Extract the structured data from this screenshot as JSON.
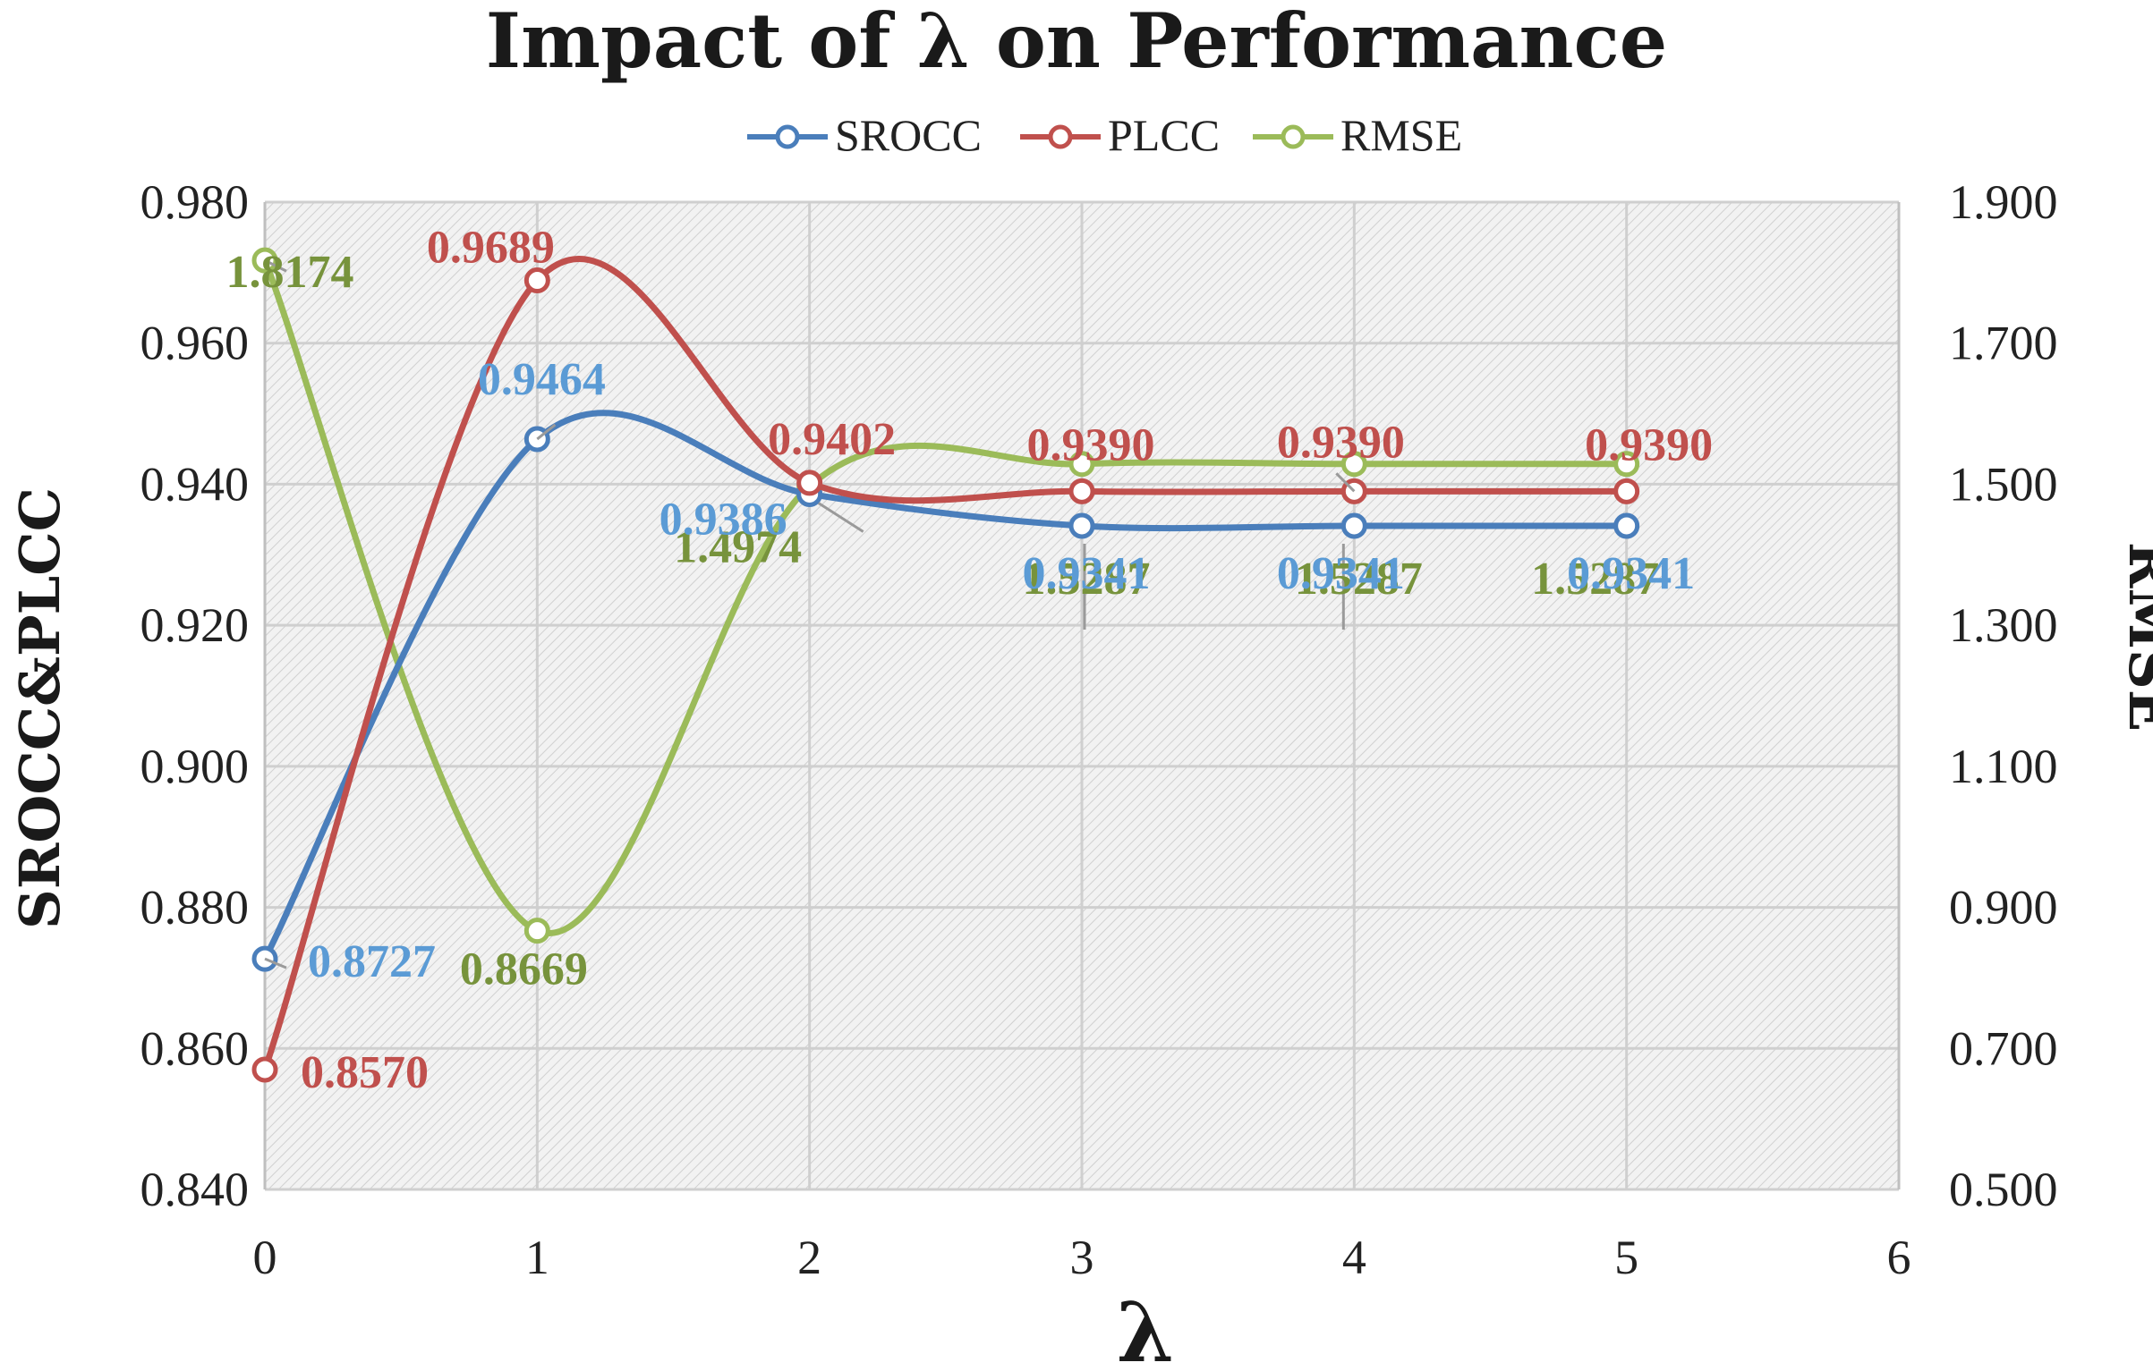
{
  "chart_data": {
    "type": "line",
    "title": "Impact of λ on Performance",
    "xlabel": "λ",
    "ylabel": "SROCC&PLCC",
    "y2label": "RMSE",
    "x_ticks": [
      0,
      1,
      2,
      3,
      4,
      5,
      6
    ],
    "xlim": [
      0,
      6
    ],
    "ylim": [
      0.84,
      0.98
    ],
    "y_ticks": [
      "0.840",
      "0.860",
      "0.880",
      "0.900",
      "0.920",
      "0.940",
      "0.960",
      "0.980"
    ],
    "y2lim": [
      0.5,
      1.9
    ],
    "y2_ticks": [
      "0.500",
      "0.700",
      "0.900",
      "1.100",
      "1.300",
      "1.500",
      "1.700",
      "1.900"
    ],
    "legend_position": "top-center",
    "grid": true,
    "x": [
      0,
      1,
      2,
      3,
      4,
      5
    ],
    "series": [
      {
        "name": "SROCC",
        "axis": "left",
        "color": "#4A7EBB",
        "label_color": "#5B9BD5",
        "values": [
          0.8727,
          0.9464,
          0.9386,
          0.9341,
          0.9341,
          0.9341
        ],
        "labels": [
          "0.8727",
          "0.9464",
          "0.9386",
          "0.9341",
          "0.9341",
          "0.9341"
        ]
      },
      {
        "name": "PLCC",
        "axis": "left",
        "color": "#C0504D",
        "label_color": "#C0504D",
        "values": [
          0.857,
          0.9689,
          0.9402,
          0.939,
          0.939,
          0.939
        ],
        "labels": [
          "0.8570",
          "0.9689",
          "0.9402",
          "0.9390",
          "0.9390",
          "0.9390"
        ]
      },
      {
        "name": "RMSE",
        "axis": "right",
        "color": "#9BBB59",
        "label_color": "#77933C",
        "values": [
          1.8174,
          0.8669,
          1.4974,
          1.5287,
          1.5287,
          1.5287
        ],
        "labels": [
          "1.8174",
          "0.8669",
          "1.4974",
          "1.5287",
          "1.5287",
          "1.5287"
        ]
      }
    ]
  }
}
